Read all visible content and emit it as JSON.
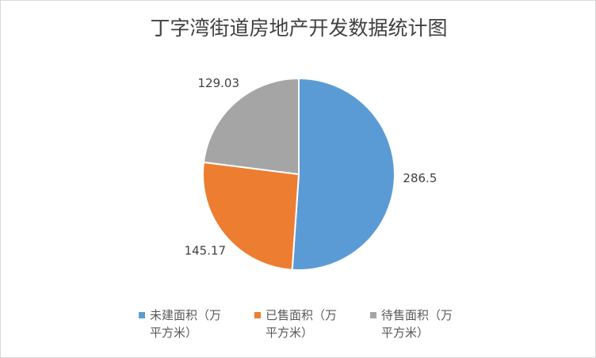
{
  "chart_data": {
    "type": "pie",
    "title": "丁字湾街道房地产开发数据统计图",
    "categories": [
      "未建面积（万平方米）",
      "已售面积（万平方米）",
      "待售面积（万平方米）"
    ],
    "values": [
      286.5,
      145.17,
      129.03
    ],
    "colors": [
      "#5b9bd5",
      "#ed7d31",
      "#a5a5a5"
    ],
    "legend": "bottom"
  }
}
